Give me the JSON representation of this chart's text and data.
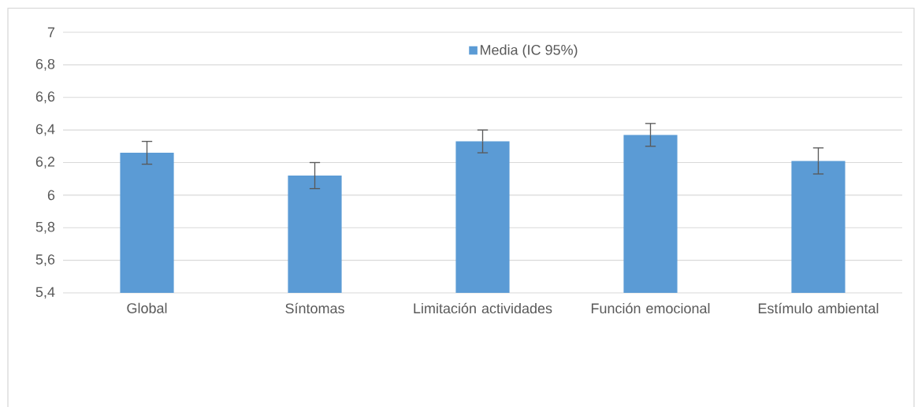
{
  "chart_data": {
    "type": "bar",
    "categories": [
      "Global",
      "Síntomas",
      "Limitación actividades",
      "Función emocional",
      "Estímulo ambiental"
    ],
    "series": [
      {
        "name": "Media (IC 95%)",
        "color": "#5b9bd5",
        "values": [
          6.26,
          6.12,
          6.33,
          6.37,
          6.21
        ],
        "errors": [
          0.07,
          0.08,
          0.07,
          0.07,
          0.08
        ]
      }
    ],
    "ylim": [
      5.4,
      7
    ],
    "yticks": [
      {
        "value": 5.4,
        "label": "5,4"
      },
      {
        "value": 5.6,
        "label": "5,6"
      },
      {
        "value": 5.8,
        "label": "5,8"
      },
      6,
      {
        "value": 6.2,
        "label": "6,2"
      },
      {
        "value": 6.4,
        "label": "6,4"
      },
      {
        "value": 6.6,
        "label": "6,6"
      },
      {
        "value": 6.8,
        "label": "6,8"
      },
      7
    ],
    "grid": "y",
    "legend": "top"
  }
}
